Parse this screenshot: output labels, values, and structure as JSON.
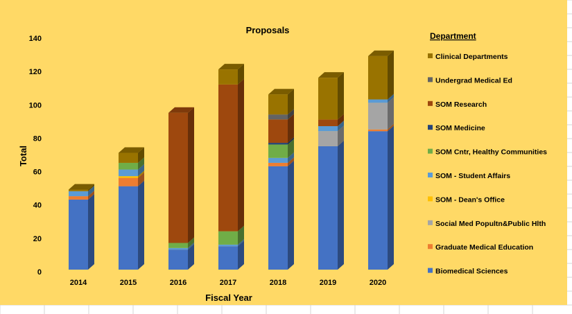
{
  "chart_data": {
    "type": "bar",
    "stacked": true,
    "style": "3d-column",
    "title": "Proposals",
    "xlabel": "Fiscal Year",
    "ylabel": "Total",
    "ylim": [
      0,
      140
    ],
    "yticks": [
      0,
      20,
      40,
      60,
      80,
      100,
      120,
      140
    ],
    "grid": false,
    "legend_title": "Department",
    "legend_position": "right",
    "background_color": "#FFD966",
    "categories": [
      "2014",
      "2015",
      "2016",
      "2017",
      "2018",
      "2019",
      "2020"
    ],
    "series": [
      {
        "name": "Biomedical Sciences",
        "color": "#4472C4",
        "values": [
          42,
          50,
          12,
          14,
          62,
          74,
          83
        ]
      },
      {
        "name": "Graduate Medical Education",
        "color": "#ED7D31",
        "values": [
          2,
          5,
          0,
          0,
          2,
          0,
          1
        ]
      },
      {
        "name": "Social Med Popultn&Public Hlth",
        "color": "#A5A5A5",
        "values": [
          0,
          0,
          0,
          0,
          0,
          9,
          16
        ]
      },
      {
        "name": "SOM - Dean's Office",
        "color": "#FFC000",
        "values": [
          0,
          1,
          0,
          0,
          0,
          0,
          0
        ]
      },
      {
        "name": "SOM - Student Affairs",
        "color": "#5B9BD5",
        "values": [
          3,
          4,
          1,
          1,
          3,
          3,
          2
        ]
      },
      {
        "name": "SOM Cntr, Healthy Communities",
        "color": "#70AD47",
        "values": [
          0,
          4,
          3,
          8,
          8,
          0,
          0
        ]
      },
      {
        "name": "SOM Medicine",
        "color": "#264478",
        "values": [
          0,
          0,
          0,
          0,
          1,
          0,
          0
        ]
      },
      {
        "name": "SOM Research",
        "color": "#9E480E",
        "values": [
          0,
          0,
          78,
          88,
          14,
          4,
          0
        ]
      },
      {
        "name": "Undergrad Medical Ed",
        "color": "#636363",
        "values": [
          0,
          0,
          0,
          0,
          3,
          0,
          0
        ]
      },
      {
        "name": "Clinical Departments",
        "color": "#997300",
        "values": [
          1,
          6,
          0,
          9,
          12,
          25,
          26
        ]
      }
    ]
  }
}
